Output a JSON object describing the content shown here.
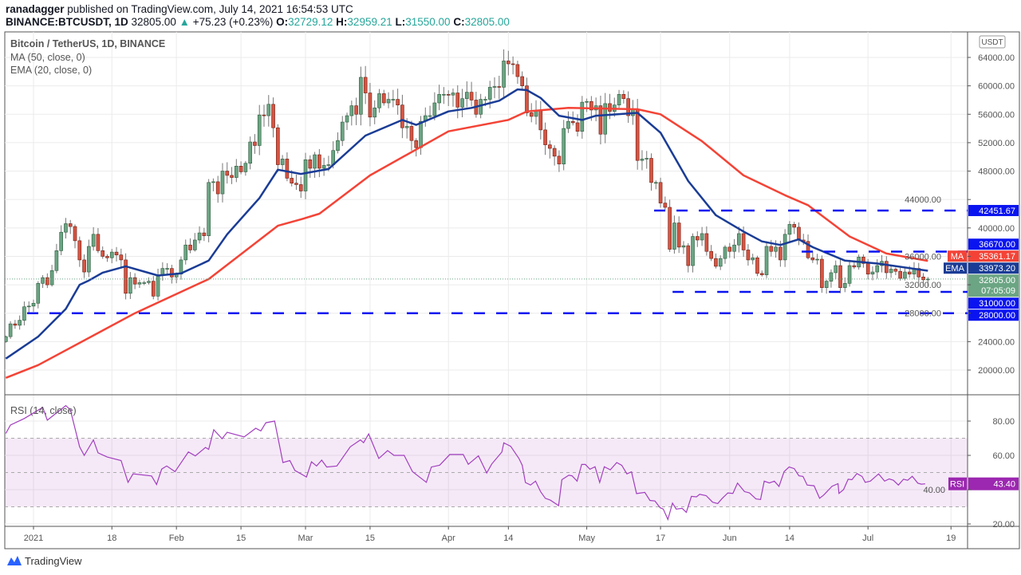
{
  "header": {
    "publisher": "ranadagger",
    "published_text": "published on TradingView.com, July 14, 2021 16:54:53 UTC",
    "symbol": "BINANCE:BTCUSDT, 1D",
    "last_price": "32805.00",
    "change": "+75.23 (+0.23%)",
    "change_arrow": "▲",
    "open_label": "O:",
    "open": "32729.12",
    "high_label": "H:",
    "high": "32959.21",
    "low_label": "L:",
    "low": "31550.00",
    "close_label": "C:",
    "close": "32805.00"
  },
  "legend": {
    "title": "Bitcoin / TetherUS, 1D, BINANCE",
    "ma": "MA (50, close, 0)",
    "ema": "EMA (20, close, 0)",
    "rsi": "RSI (14, close)"
  },
  "currency": "USDT",
  "colors": {
    "up": "#6ba583",
    "down": "#d75442",
    "ma": "#f44336",
    "ema": "#1a3c96",
    "levels": "#0a14f0",
    "rsi": "#a23fbf",
    "price_badge": "#6ba583"
  },
  "chart_data": {
    "type": "candlestick",
    "title": "Bitcoin / TetherUS, 1D, BINANCE",
    "day_origin": "2021-01-01",
    "first_day_index": -6,
    "closes": [
      24700,
      26500,
      26300,
      27000,
      28900,
      29000,
      29400,
      32200,
      33000,
      32000,
      34000,
      36800,
      39400,
      40600,
      40200,
      38200,
      35500,
      33800,
      37400,
      39100,
      36800,
      36000,
      35800,
      36600,
      36200,
      35500,
      30800,
      33000,
      32100,
      32300,
      32300,
      32500,
      30400,
      33400,
      34300,
      34300,
      33100,
      33500,
      35500,
      37600,
      36900,
      38300,
      39300,
      38900,
      46400,
      46500,
      44800,
      48000,
      47400,
      47100,
      48700,
      47900,
      49100,
      52100,
      51600,
      55900,
      55800,
      57400,
      54100,
      48900,
      49700,
      47000,
      46300,
      46100,
      45200,
      49600,
      48400,
      50300,
      48400,
      48800,
      48900,
      50900,
      52300,
      54900,
      55800,
      57200,
      56000,
      61200,
      59000,
      55600,
      56900,
      58900,
      57600,
      58100,
      58100,
      57300,
      54100,
      54300,
      52300,
      51300,
      55000,
      55800,
      55800,
      57600,
      58800,
      58800,
      58700,
      59000,
      57000,
      58200,
      59100,
      58000,
      56000,
      58100,
      58100,
      59800,
      59900,
      59800,
      63500,
      63100,
      63000,
      61300,
      60000,
      56200,
      55700,
      56500,
      53800,
      51700,
      51200,
      50100,
      49000,
      54000,
      55000,
      54800,
      53600,
      57700,
      57800,
      56600,
      57200,
      53200,
      57500,
      56400,
      57300,
      58800,
      58200,
      55800,
      56700,
      49500,
      49700,
      49800,
      46400,
      46400,
      43500,
      42900,
      37000,
      40700,
      37300,
      37500,
      34700,
      38800,
      38300,
      39200,
      36700,
      35700,
      34600,
      35700,
      37300,
      36700,
      37600,
      39200,
      36900,
      35500,
      35800,
      33600,
      33400,
      37400,
      36700,
      37300,
      35500,
      39100,
      40500,
      40100,
      38300,
      38100,
      35800,
      35500,
      35600,
      31600,
      32500,
      33700,
      34700,
      31600,
      32200,
      34700,
      34500,
      35900,
      35000,
      33500,
      33800,
      34700,
      35300,
      33700,
      34200,
      33900,
      32900,
      33800,
      33500,
      34300,
      33100,
      32700,
      32805
    ],
    "first_open": 24000,
    "ma50": [
      [
        -6,
        18900
      ],
      [
        1,
        20700
      ],
      [
        22,
        28000
      ],
      [
        38,
        32800
      ],
      [
        53,
        40300
      ],
      [
        58,
        41200
      ],
      [
        62,
        42000
      ],
      [
        73,
        47400
      ],
      [
        90,
        53600
      ],
      [
        103,
        55200
      ],
      [
        107,
        56400
      ],
      [
        116,
        56900
      ],
      [
        131,
        56700
      ],
      [
        136,
        56000
      ],
      [
        145,
        52200
      ],
      [
        154,
        47400
      ],
      [
        163,
        44600
      ],
      [
        168,
        43200
      ],
      [
        177,
        38800
      ],
      [
        185,
        36400
      ],
      [
        194,
        35361.17
      ]
    ],
    "ema20": [
      [
        -6,
        21600
      ],
      [
        1,
        24700
      ],
      [
        7,
        28600
      ],
      [
        10,
        32000
      ],
      [
        12,
        32600
      ],
      [
        15,
        33700
      ],
      [
        20,
        34600
      ],
      [
        27,
        33300
      ],
      [
        32,
        33600
      ],
      [
        38,
        35400
      ],
      [
        42,
        39100
      ],
      [
        49,
        44200
      ],
      [
        53,
        48200
      ],
      [
        58,
        47600
      ],
      [
        64,
        48300
      ],
      [
        72,
        53000
      ],
      [
        80,
        55200
      ],
      [
        83,
        54500
      ],
      [
        90,
        56400
      ],
      [
        95,
        56900
      ],
      [
        101,
        57900
      ],
      [
        105,
        59500
      ],
      [
        107,
        59400
      ],
      [
        110,
        58300
      ],
      [
        114,
        55800
      ],
      [
        119,
        55200
      ],
      [
        122,
        55800
      ],
      [
        131,
        56200
      ],
      [
        136,
        53400
      ],
      [
        142,
        46600
      ],
      [
        148,
        41800
      ],
      [
        154,
        39500
      ],
      [
        158,
        38100
      ],
      [
        162,
        37600
      ],
      [
        166,
        38400
      ],
      [
        169,
        37300
      ],
      [
        176,
        35400
      ],
      [
        183,
        35000
      ],
      [
        194,
        33973.2
      ]
    ],
    "levels": [
      {
        "value": 42451.67,
        "label": "42451.67",
        "from_day": 136
      },
      {
        "value": 36670,
        "label": "36670.00",
        "from_day": 168
      },
      {
        "value": 31000,
        "label": "31000.00",
        "from_day": 140
      },
      {
        "value": 28000,
        "label": "28000.00",
        "from_day": 0
      }
    ],
    "ma_badge": {
      "tag": "MA",
      "value": "35361.17",
      "price": 35361.17
    },
    "ema_badge": {
      "tag": "EMA",
      "value": "33973.20",
      "price": 33973.2
    },
    "price_badge": {
      "value": "32805.00",
      "countdown": "07:05:09",
      "price": 32805
    },
    "ylim": [
      20000,
      64000
    ],
    "y_ticks": [
      "64000.00",
      "60000.00",
      "56000.00",
      "52000.00",
      "48000.00",
      "44000.00",
      "40000.00",
      "36000.00",
      "32000.00",
      "28000.00",
      "24000.00",
      "20000.00"
    ],
    "y_tick_values": [
      64000,
      60000,
      56000,
      52000,
      48000,
      44000,
      40000,
      36000,
      32000,
      28000,
      24000,
      20000
    ],
    "x_ticks": [
      {
        "label": "2021",
        "day": 0
      },
      {
        "label": "18",
        "day": 17
      },
      {
        "label": "Feb",
        "day": 31
      },
      {
        "label": "15",
        "day": 45
      },
      {
        "label": "Mar",
        "day": 59
      },
      {
        "label": "15",
        "day": 73
      },
      {
        "label": "Apr",
        "day": 90
      },
      {
        "label": "14",
        "day": 103
      },
      {
        "label": "May",
        "day": 120
      },
      {
        "label": "17",
        "day": 136
      },
      {
        "label": "Jun",
        "day": 151
      },
      {
        "label": "14",
        "day": 164
      },
      {
        "label": "Jul",
        "day": 181
      },
      {
        "label": "19",
        "day": 199
      }
    ],
    "rsi": {
      "ylim": [
        20,
        90
      ],
      "band": [
        30,
        70
      ],
      "mid": 50,
      "y_ticks": [
        "80.00",
        "60.00",
        "40.00",
        "20.00"
      ],
      "y_tick_values": [
        80,
        60,
        40,
        20
      ],
      "badge": {
        "tag": "RSI",
        "value": "43.40",
        "rsi": 43.4
      },
      "points": [
        [
          -6,
          72.8
        ],
        [
          -5,
          77.7
        ],
        [
          -2,
          81.5
        ],
        [
          2,
          88
        ],
        [
          3,
          80.5
        ],
        [
          7,
          89
        ],
        [
          8,
          86.6
        ],
        [
          10,
          65
        ],
        [
          11,
          60
        ],
        [
          13,
          69
        ],
        [
          14,
          61.5
        ],
        [
          16,
          59
        ],
        [
          19,
          57
        ],
        [
          20.5,
          44.3
        ],
        [
          21.6,
          49.2
        ],
        [
          25.6,
          48
        ],
        [
          26.7,
          43
        ],
        [
          27.8,
          52
        ],
        [
          28.9,
          53.8
        ],
        [
          30.7,
          50.5
        ],
        [
          33.6,
          62
        ],
        [
          35.1,
          59.7
        ],
        [
          37.3,
          64.6
        ],
        [
          38,
          63.5
        ],
        [
          39.1,
          75
        ],
        [
          40.9,
          69.7
        ],
        [
          42,
          73.5
        ],
        [
          45.7,
          70.8
        ],
        [
          48.2,
          75.8
        ],
        [
          49.3,
          74.3
        ],
        [
          50.4,
          79
        ],
        [
          52.3,
          80
        ],
        [
          54.1,
          55.8
        ],
        [
          55.6,
          57
        ],
        [
          56.7,
          51.2
        ],
        [
          59.2,
          47.4
        ],
        [
          60.3,
          56.3
        ],
        [
          61.4,
          53.8
        ],
        [
          62.5,
          57.2
        ],
        [
          63.6,
          53.2
        ],
        [
          65.8,
          53.8
        ],
        [
          68.7,
          65
        ],
        [
          70.9,
          69
        ],
        [
          71.6,
          67.4
        ],
        [
          72.7,
          72.5
        ],
        [
          74.9,
          58.2
        ],
        [
          76.8,
          62.8
        ],
        [
          78.2,
          60
        ],
        [
          80.4,
          60
        ],
        [
          82.2,
          50.5
        ],
        [
          85.2,
          44.3
        ],
        [
          86.3,
          53.2
        ],
        [
          88.1,
          54.3
        ],
        [
          90.3,
          60.5
        ],
        [
          93.2,
          60.5
        ],
        [
          94.3,
          54.8
        ],
        [
          96.5,
          59.7
        ],
        [
          98.3,
          49.7
        ],
        [
          99.4,
          55
        ],
        [
          101.6,
          62
        ],
        [
          102,
          67.3
        ],
        [
          103.5,
          65.3
        ],
        [
          105.3,
          58.2
        ],
        [
          106,
          54.3
        ],
        [
          106.7,
          44.2
        ],
        [
          107.8,
          42.7
        ],
        [
          108.9,
          45
        ],
        [
          110,
          38.8
        ],
        [
          111,
          35
        ],
        [
          112.1,
          33.9
        ],
        [
          113.9,
          30.7
        ],
        [
          114.6,
          45.8
        ],
        [
          116.1,
          48.4
        ],
        [
          116.8,
          48.1
        ],
        [
          117.9,
          45
        ],
        [
          118.9,
          54.7
        ],
        [
          119.7,
          54.7
        ],
        [
          120.7,
          51.9
        ],
        [
          121.8,
          53.4
        ],
        [
          122.8,
          44.2
        ],
        [
          123.8,
          53.4
        ],
        [
          125.1,
          51.6
        ],
        [
          126.5,
          55.8
        ],
        [
          127.6,
          54.2
        ],
        [
          128.7,
          49.2
        ],
        [
          129.7,
          50.4
        ],
        [
          130.8,
          37.7
        ],
        [
          132.6,
          38.4
        ],
        [
          133.7,
          33.7
        ],
        [
          134.8,
          33.4
        ],
        [
          135.9,
          29.5
        ],
        [
          136.6,
          28.7
        ],
        [
          137.6,
          22.6
        ],
        [
          138.6,
          32.2
        ],
        [
          139.4,
          28.7
        ],
        [
          140.7,
          29.1
        ],
        [
          141.6,
          26.8
        ],
        [
          142.7,
          36.1
        ],
        [
          143.8,
          35.8
        ],
        [
          144.5,
          37.3
        ],
        [
          145.9,
          36.5
        ],
        [
          147.3,
          32.7
        ],
        [
          148.4,
          31.9
        ],
        [
          149.4,
          35
        ],
        [
          150.6,
          38.1
        ],
        [
          151.7,
          37.8
        ],
        [
          152.7,
          43.8
        ],
        [
          154.2,
          38.9
        ],
        [
          155.3,
          38.1
        ],
        [
          156.7,
          34.6
        ],
        [
          157.7,
          34.3
        ],
        [
          158.5,
          45
        ],
        [
          159.6,
          43.9
        ],
        [
          160.7,
          45
        ],
        [
          161.7,
          41.9
        ],
        [
          162.8,
          50.5
        ],
        [
          163.9,
          53.2
        ],
        [
          165,
          52.3
        ],
        [
          166,
          48.1
        ],
        [
          166.9,
          47.7
        ],
        [
          167.8,
          42.7
        ],
        [
          169.3,
          42.3
        ],
        [
          170.5,
          35
        ],
        [
          171.4,
          36.9
        ],
        [
          173.2,
          42
        ],
        [
          174.5,
          43.5
        ],
        [
          174.7,
          37.8
        ],
        [
          175.7,
          40
        ],
        [
          176.7,
          46.1
        ],
        [
          177.5,
          45.8
        ],
        [
          178.6,
          49.4
        ],
        [
          179.7,
          47.7
        ],
        [
          180.4,
          44.3
        ],
        [
          181.5,
          45
        ],
        [
          183.3,
          49.2
        ],
        [
          184.6,
          45
        ],
        [
          185.6,
          46.3
        ],
        [
          186.5,
          45.5
        ],
        [
          187.6,
          42.7
        ],
        [
          188.7,
          46.1
        ],
        [
          189.6,
          45.5
        ],
        [
          190.6,
          47.8
        ],
        [
          191.8,
          43.8
        ],
        [
          192.6,
          43.2
        ],
        [
          193.4,
          43.4
        ]
      ]
    }
  },
  "footer": {
    "brand": "TradingView"
  }
}
